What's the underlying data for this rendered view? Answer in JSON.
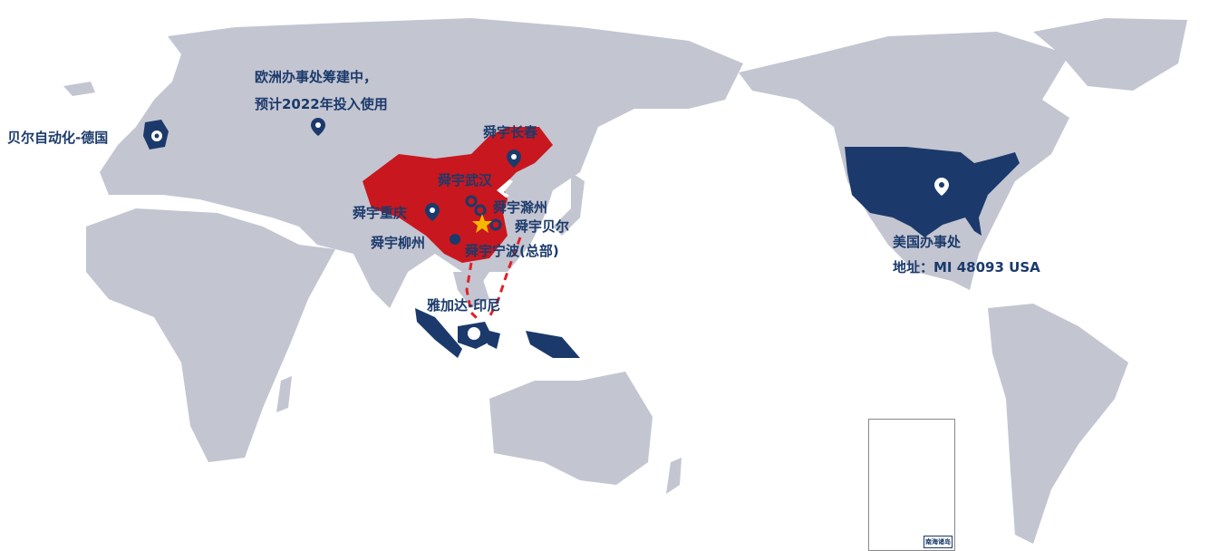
{
  "colors": {
    "land": "#c3c5d1",
    "highlight_navy": "#1b3a6b",
    "china_red": "#c8171f",
    "hq_star": "#f5b800",
    "route": "#e0202a"
  },
  "labels": {
    "germany": "贝尔自动化-德国",
    "europe_line1": "欧洲办事处筹建中，",
    "europe_line2": "预计2022年投入使用",
    "changchun": "舜宇长春",
    "wuhan": "舜宇武汉",
    "chongqing": "舜宇重庆",
    "chuzhou": "舜宇滁州",
    "beier": "舜宇贝尔",
    "liuzhou": "舜宇柳州",
    "ningbo": "舜宇宁波(总部)",
    "jakarta": "雅加达-印尼",
    "usa_office": "美国办事处",
    "usa_address": "地址：MI 48093 USA"
  },
  "inset": {
    "title": "南海诸岛"
  },
  "icons": [
    "gear-icon",
    "map-pin-icon",
    "ring-marker-icon",
    "dot-marker-icon",
    "star-icon",
    "airplane-icon"
  ]
}
